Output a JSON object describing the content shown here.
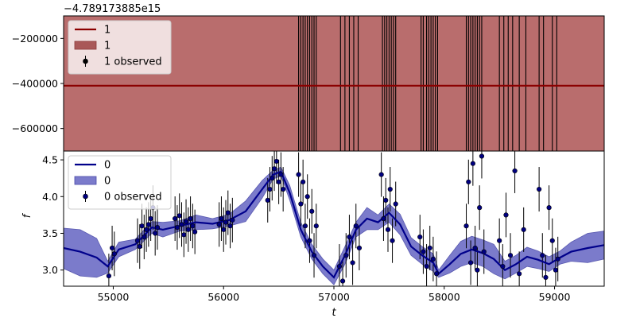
{
  "chart_data": [
    {
      "type": "line",
      "panel": "top",
      "offset_label": "−4.789173885e15",
      "ylim": [
        -700000,
        -100000
      ],
      "yticks": [
        -200000,
        -400000,
        -600000
      ],
      "ytick_labels": [
        "−200000",
        "−400000",
        "−600000"
      ],
      "series": [
        {
          "name": "1",
          "kind": "line",
          "color": "#8b0000",
          "y": -410000
        },
        {
          "name": "1",
          "kind": "band",
          "color": "#b96d6d",
          "lower": -700000,
          "upper": -100000
        },
        {
          "name": "1 observed",
          "kind": "errorbar",
          "color": "#000000",
          "x": [
            56680,
            56700,
            56720,
            56740,
            56760,
            56780,
            56800,
            56820,
            56840,
            57060,
            57100,
            57140,
            57180,
            57220,
            57440,
            57460,
            57480,
            57500,
            57520,
            57540,
            57560,
            57790,
            57810,
            57840,
            57860,
            57880,
            57900,
            57920,
            57940,
            58200,
            58220,
            58240,
            58260,
            58280,
            58300,
            58320,
            58340,
            58500,
            58540,
            58580,
            58620,
            58680,
            58740,
            58860,
            58900,
            58980,
            59020
          ]
        }
      ],
      "legend": [
        "1",
        "1",
        "1 observed"
      ],
      "legend_loc": "upper-left"
    },
    {
      "type": "line",
      "panel": "bottom",
      "xlabel": "t",
      "ylabel": "f",
      "xlim": [
        54550,
        59450
      ],
      "ylim": [
        2.78,
        4.62
      ],
      "xticks": [
        55000,
        56000,
        57000,
        58000,
        59000
      ],
      "yticks": [
        3.0,
        3.5,
        4.0,
        4.5
      ],
      "ytick_labels": [
        "3.0",
        "3.5",
        "4.0",
        "4.5"
      ],
      "series": [
        {
          "name": "0",
          "kind": "line",
          "color": "#00008b",
          "x": [
            54550,
            54700,
            54850,
            54950,
            55050,
            55200,
            55350,
            55450,
            55600,
            55750,
            55900,
            56050,
            56200,
            56350,
            56450,
            56520,
            56600,
            56700,
            56800,
            56900,
            57000,
            57100,
            57200,
            57300,
            57400,
            57500,
            57600,
            57700,
            57800,
            57900,
            57950,
            58050,
            58150,
            58250,
            58350,
            58450,
            58550,
            58650,
            58750,
            58850,
            58950,
            59050,
            59150,
            59300,
            59450
          ],
          "y": [
            3.3,
            3.25,
            3.17,
            3.05,
            3.28,
            3.35,
            3.58,
            3.55,
            3.6,
            3.65,
            3.63,
            3.68,
            3.8,
            4.1,
            4.3,
            4.34,
            4.05,
            3.55,
            3.25,
            3.05,
            2.9,
            3.2,
            3.55,
            3.7,
            3.65,
            3.78,
            3.62,
            3.32,
            3.2,
            3.1,
            2.95,
            3.08,
            3.22,
            3.28,
            3.23,
            3.15,
            3.0,
            3.08,
            3.18,
            3.14,
            3.08,
            3.17,
            3.25,
            3.3,
            3.34
          ]
        },
        {
          "name": "0",
          "kind": "band",
          "color": "#7b7bcb",
          "x": [
            54550,
            54700,
            54850,
            54950,
            55050,
            55200,
            55350,
            55450,
            55600,
            55750,
            55900,
            56050,
            56200,
            56350,
            56450,
            56520,
            56600,
            56700,
            56800,
            56900,
            57000,
            57100,
            57200,
            57300,
            57400,
            57500,
            57600,
            57700,
            57800,
            57900,
            57950,
            58050,
            58150,
            58250,
            58350,
            58450,
            58550,
            58650,
            58750,
            58850,
            58950,
            59050,
            59150,
            59300,
            59450
          ],
          "lower": [
            3.02,
            2.92,
            2.9,
            2.96,
            3.18,
            3.28,
            3.5,
            3.45,
            3.53,
            3.55,
            3.56,
            3.6,
            3.66,
            3.98,
            4.24,
            4.28,
            3.95,
            3.45,
            3.15,
            2.95,
            2.8,
            3.08,
            3.45,
            3.55,
            3.55,
            3.65,
            3.48,
            3.2,
            3.08,
            2.98,
            2.9,
            2.96,
            3.05,
            3.1,
            3.05,
            2.95,
            2.88,
            2.96,
            3.05,
            3.02,
            2.98,
            3.08,
            3.12,
            3.1,
            3.15
          ],
          "upper": [
            3.57,
            3.55,
            3.43,
            3.12,
            3.38,
            3.42,
            3.66,
            3.65,
            3.67,
            3.75,
            3.7,
            3.76,
            3.94,
            4.22,
            4.36,
            4.4,
            4.15,
            3.65,
            3.35,
            3.15,
            3.0,
            3.32,
            3.65,
            3.85,
            3.75,
            3.9,
            3.76,
            3.44,
            3.32,
            3.22,
            3.0,
            3.2,
            3.39,
            3.46,
            3.41,
            3.35,
            3.12,
            3.2,
            3.31,
            3.26,
            3.18,
            3.26,
            3.38,
            3.5,
            3.53
          ]
        },
        {
          "name": "0 observed",
          "kind": "errorbar",
          "color": "#000080",
          "x": [
            54960,
            54990,
            55010,
            55220,
            55240,
            55260,
            55280,
            55300,
            55320,
            55340,
            55360,
            55380,
            55400,
            55560,
            55580,
            55600,
            55620,
            55640,
            55660,
            55680,
            55700,
            55720,
            55740,
            55960,
            55980,
            56000,
            56020,
            56040,
            56060,
            56080,
            56400,
            56420,
            56440,
            56460,
            56480,
            56500,
            56520,
            56540,
            56680,
            56700,
            56720,
            56740,
            56760,
            56780,
            56800,
            56820,
            56840,
            57050,
            57080,
            57110,
            57140,
            57170,
            57200,
            57230,
            57430,
            57450,
            57470,
            57490,
            57510,
            57530,
            57560,
            57780,
            57810,
            57840,
            57870,
            57900,
            57930,
            58200,
            58220,
            58240,
            58260,
            58280,
            58300,
            58320,
            58340,
            58360,
            58500,
            58530,
            58560,
            58600,
            58640,
            58680,
            58720,
            58860,
            58890,
            58920,
            58950,
            58980,
            59010,
            59030
          ],
          "y": [
            2.92,
            3.3,
            3.22,
            3.4,
            3.32,
            3.6,
            3.45,
            3.55,
            3.62,
            3.7,
            3.85,
            3.5,
            3.58,
            3.7,
            3.58,
            3.74,
            3.62,
            3.48,
            3.66,
            3.55,
            3.7,
            3.6,
            3.52,
            3.62,
            3.7,
            3.55,
            3.65,
            3.78,
            3.6,
            3.68,
            3.95,
            4.1,
            4.25,
            4.38,
            4.48,
            4.2,
            4.3,
            4.1,
            4.3,
            3.9,
            4.2,
            3.6,
            4.0,
            3.4,
            3.8,
            3.2,
            3.6,
            3.05,
            2.85,
            3.2,
            3.45,
            3.1,
            3.6,
            3.3,
            4.3,
            3.7,
            3.95,
            3.55,
            4.1,
            3.4,
            3.9,
            3.45,
            3.25,
            3.05,
            3.3,
            3.15,
            2.95,
            3.6,
            4.2,
            3.1,
            4.45,
            3.3,
            3.0,
            3.85,
            4.55,
            3.25,
            3.4,
            3.05,
            3.75,
            3.2,
            4.35,
            2.95,
            3.55,
            4.1,
            3.2,
            2.9,
            3.85,
            3.4,
            3.0,
            3.15
          ]
        }
      ],
      "legend": [
        "0",
        "0",
        "0 observed"
      ],
      "legend_loc": "upper-left"
    }
  ]
}
